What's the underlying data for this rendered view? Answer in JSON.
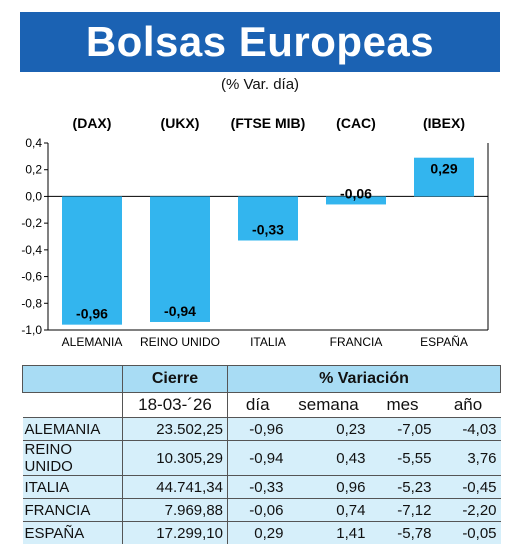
{
  "header": {
    "title": "Bolsas Europeas",
    "subtitle": "(% Var. día)"
  },
  "chart_data": {
    "type": "bar",
    "categories": [
      "ALEMANIA",
      "REINO UNIDO",
      "ITALIA",
      "FRANCIA",
      "ESPAÑA"
    ],
    "indices": [
      "(DAX)",
      "(UKX)",
      "(FTSE MIB)",
      "(CAC)",
      "(IBEX)"
    ],
    "values": [
      -0.96,
      -0.94,
      -0.33,
      -0.06,
      0.29
    ],
    "value_labels": [
      "-0,96",
      "-0,94",
      "-0,33",
      "-0,06",
      "0,29"
    ],
    "y_ticks": [
      "0,4",
      "0,2",
      "0,0",
      "-0,2",
      "-0,4",
      "-0,6",
      "-0,8",
      "-1,0"
    ],
    "ylim": [
      -1.0,
      0.4
    ],
    "bar_color": "#33b5ee",
    "grid": false
  },
  "table": {
    "header_cierre": "Cierre",
    "header_variacion": "% Variación",
    "date": "18-03-´26",
    "col_dia": "día",
    "col_semana": "semana",
    "col_mes": "mes",
    "col_ano": "año",
    "rows": [
      {
        "name": "ALEMANIA",
        "cierre": "23.502,25",
        "dia": "-0,96",
        "semana": "0,23",
        "mes": "-7,05",
        "ano": "-4,03"
      },
      {
        "name": "REINO UNIDO",
        "cierre": "10.305,29",
        "dia": "-0,94",
        "semana": "0,43",
        "mes": "-5,55",
        "ano": "3,76"
      },
      {
        "name": "ITALIA",
        "cierre": "44.741,34",
        "dia": "-0,33",
        "semana": "0,96",
        "mes": "-5,23",
        "ano": "-0,45"
      },
      {
        "name": "FRANCIA",
        "cierre": "7.969,88",
        "dia": "-0,06",
        "semana": "0,74",
        "mes": "-7,12",
        "ano": "-2,20"
      },
      {
        "name": "ESPAÑA",
        "cierre": "17.299,10",
        "dia": "0,29",
        "semana": "1,41",
        "mes": "-5,78",
        "ano": "-0,05"
      }
    ],
    "colors": {
      "header_bg": "#a8dcf4",
      "row_bg": "#d6effa"
    }
  }
}
